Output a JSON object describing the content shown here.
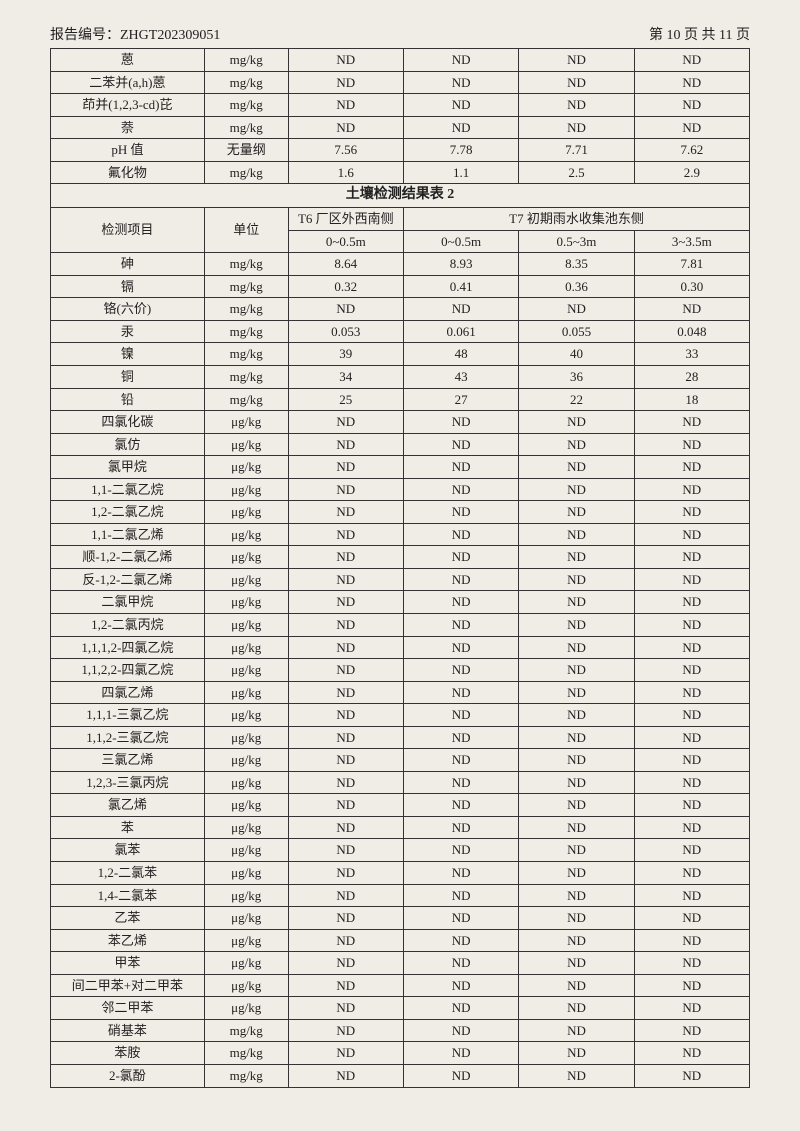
{
  "header": {
    "report_label": "报告编号：",
    "report_no": "ZHGT202309051",
    "page_info": "第 10 页 共 11 页"
  },
  "section2_title": "土壤检测结果表 2",
  "headers2": {
    "param": "检测项目",
    "unit": "单位",
    "t6": "T6 厂区外西南侧",
    "t7": "T7 初期雨水收集池东侧",
    "t6_sub": "0~0.5m",
    "t7_a": "0~0.5m",
    "t7_b": "0.5~3m",
    "t7_c": "3~3.5m"
  },
  "table1_rows": [
    {
      "p": "蒽",
      "u": "mg/kg",
      "v": [
        "ND",
        "ND",
        "ND",
        "ND"
      ]
    },
    {
      "p": "二苯并(a,h)蒽",
      "u": "mg/kg",
      "v": [
        "ND",
        "ND",
        "ND",
        "ND"
      ]
    },
    {
      "p": "茚并(1,2,3-cd)芘",
      "u": "mg/kg",
      "v": [
        "ND",
        "ND",
        "ND",
        "ND"
      ]
    },
    {
      "p": "萘",
      "u": "mg/kg",
      "v": [
        "ND",
        "ND",
        "ND",
        "ND"
      ]
    },
    {
      "p": "pH 值",
      "u": "无量纲",
      "v": [
        "7.56",
        "7.78",
        "7.71",
        "7.62"
      ]
    },
    {
      "p": "氟化物",
      "u": "mg/kg",
      "v": [
        "1.6",
        "1.1",
        "2.5",
        "2.9"
      ]
    }
  ],
  "table2_rows": [
    {
      "p": "砷",
      "u": "mg/kg",
      "v": [
        "8.64",
        "8.93",
        "8.35",
        "7.81"
      ]
    },
    {
      "p": "镉",
      "u": "mg/kg",
      "v": [
        "0.32",
        "0.41",
        "0.36",
        "0.30"
      ]
    },
    {
      "p": "铬(六价)",
      "u": "mg/kg",
      "v": [
        "ND",
        "ND",
        "ND",
        "ND"
      ]
    },
    {
      "p": "汞",
      "u": "mg/kg",
      "v": [
        "0.053",
        "0.061",
        "0.055",
        "0.048"
      ]
    },
    {
      "p": "镍",
      "u": "mg/kg",
      "v": [
        "39",
        "48",
        "40",
        "33"
      ]
    },
    {
      "p": "铜",
      "u": "mg/kg",
      "v": [
        "34",
        "43",
        "36",
        "28"
      ]
    },
    {
      "p": "铅",
      "u": "mg/kg",
      "v": [
        "25",
        "27",
        "22",
        "18"
      ]
    },
    {
      "p": "四氯化碳",
      "u": "μg/kg",
      "v": [
        "ND",
        "ND",
        "ND",
        "ND"
      ]
    },
    {
      "p": "氯仿",
      "u": "μg/kg",
      "v": [
        "ND",
        "ND",
        "ND",
        "ND"
      ]
    },
    {
      "p": "氯甲烷",
      "u": "μg/kg",
      "v": [
        "ND",
        "ND",
        "ND",
        "ND"
      ]
    },
    {
      "p": "1,1-二氯乙烷",
      "u": "μg/kg",
      "v": [
        "ND",
        "ND",
        "ND",
        "ND"
      ]
    },
    {
      "p": "1,2-二氯乙烷",
      "u": "μg/kg",
      "v": [
        "ND",
        "ND",
        "ND",
        "ND"
      ]
    },
    {
      "p": "1,1-二氯乙烯",
      "u": "μg/kg",
      "v": [
        "ND",
        "ND",
        "ND",
        "ND"
      ]
    },
    {
      "p": "顺-1,2-二氯乙烯",
      "u": "μg/kg",
      "v": [
        "ND",
        "ND",
        "ND",
        "ND"
      ]
    },
    {
      "p": "反-1,2-二氯乙烯",
      "u": "μg/kg",
      "v": [
        "ND",
        "ND",
        "ND",
        "ND"
      ]
    },
    {
      "p": "二氯甲烷",
      "u": "μg/kg",
      "v": [
        "ND",
        "ND",
        "ND",
        "ND"
      ]
    },
    {
      "p": "1,2-二氯丙烷",
      "u": "μg/kg",
      "v": [
        "ND",
        "ND",
        "ND",
        "ND"
      ]
    },
    {
      "p": "1,1,1,2-四氯乙烷",
      "u": "μg/kg",
      "v": [
        "ND",
        "ND",
        "ND",
        "ND"
      ]
    },
    {
      "p": "1,1,2,2-四氯乙烷",
      "u": "μg/kg",
      "v": [
        "ND",
        "ND",
        "ND",
        "ND"
      ]
    },
    {
      "p": "四氯乙烯",
      "u": "μg/kg",
      "v": [
        "ND",
        "ND",
        "ND",
        "ND"
      ]
    },
    {
      "p": "1,1,1-三氯乙烷",
      "u": "μg/kg",
      "v": [
        "ND",
        "ND",
        "ND",
        "ND"
      ]
    },
    {
      "p": "1,1,2-三氯乙烷",
      "u": "μg/kg",
      "v": [
        "ND",
        "ND",
        "ND",
        "ND"
      ]
    },
    {
      "p": "三氯乙烯",
      "u": "μg/kg",
      "v": [
        "ND",
        "ND",
        "ND",
        "ND"
      ]
    },
    {
      "p": "1,2,3-三氯丙烷",
      "u": "μg/kg",
      "v": [
        "ND",
        "ND",
        "ND",
        "ND"
      ]
    },
    {
      "p": "氯乙烯",
      "u": "μg/kg",
      "v": [
        "ND",
        "ND",
        "ND",
        "ND"
      ]
    },
    {
      "p": "苯",
      "u": "μg/kg",
      "v": [
        "ND",
        "ND",
        "ND",
        "ND"
      ]
    },
    {
      "p": "氯苯",
      "u": "μg/kg",
      "v": [
        "ND",
        "ND",
        "ND",
        "ND"
      ]
    },
    {
      "p": "1,2-二氯苯",
      "u": "μg/kg",
      "v": [
        "ND",
        "ND",
        "ND",
        "ND"
      ]
    },
    {
      "p": "1,4-二氯苯",
      "u": "μg/kg",
      "v": [
        "ND",
        "ND",
        "ND",
        "ND"
      ]
    },
    {
      "p": "乙苯",
      "u": "μg/kg",
      "v": [
        "ND",
        "ND",
        "ND",
        "ND"
      ]
    },
    {
      "p": "苯乙烯",
      "u": "μg/kg",
      "v": [
        "ND",
        "ND",
        "ND",
        "ND"
      ]
    },
    {
      "p": "甲苯",
      "u": "μg/kg",
      "v": [
        "ND",
        "ND",
        "ND",
        "ND"
      ]
    },
    {
      "p": "间二甲苯+对二甲苯",
      "u": "μg/kg",
      "v": [
        "ND",
        "ND",
        "ND",
        "ND"
      ]
    },
    {
      "p": "邻二甲苯",
      "u": "μg/kg",
      "v": [
        "ND",
        "ND",
        "ND",
        "ND"
      ]
    },
    {
      "p": "硝基苯",
      "u": "mg/kg",
      "v": [
        "ND",
        "ND",
        "ND",
        "ND"
      ]
    },
    {
      "p": "苯胺",
      "u": "mg/kg",
      "v": [
        "ND",
        "ND",
        "ND",
        "ND"
      ]
    },
    {
      "p": "2-氯酚",
      "u": "mg/kg",
      "v": [
        "ND",
        "ND",
        "ND",
        "ND"
      ]
    }
  ]
}
